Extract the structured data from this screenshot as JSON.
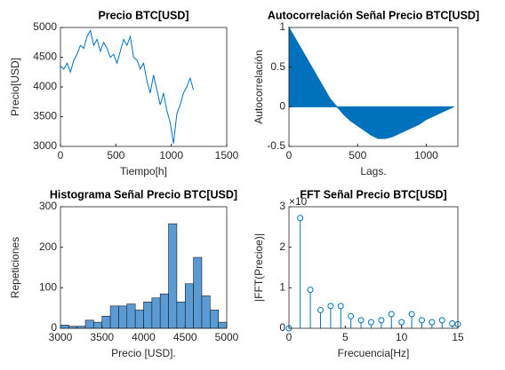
{
  "chart_data": [
    {
      "type": "line",
      "title": "Precio BTC[USD]",
      "xlabel": "Tiempo[h]",
      "ylabel": "Precio[USD]",
      "color": "#0072bd",
      "x": [
        0,
        30,
        60,
        90,
        120,
        150,
        180,
        210,
        240,
        270,
        300,
        330,
        360,
        390,
        420,
        450,
        480,
        510,
        540,
        570,
        600,
        630,
        660,
        690,
        720,
        750,
        780,
        810,
        840,
        870,
        900,
        930,
        960,
        990,
        1020,
        1050,
        1080,
        1110,
        1140,
        1170,
        1200
      ],
      "values": [
        4350,
        4300,
        4400,
        4250,
        4450,
        4550,
        4700,
        4650,
        4850,
        4950,
        4700,
        4800,
        4600,
        4750,
        4650,
        4500,
        4550,
        4400,
        4600,
        4800,
        4700,
        4850,
        4500,
        4450,
        4300,
        4400,
        4100,
        3900,
        4200,
        3950,
        3700,
        3900,
        3600,
        3400,
        3050,
        3550,
        3700,
        3900,
        4000,
        4150,
        3950
      ],
      "xlim": [
        0,
        1500
      ],
      "xticks": [
        0,
        500,
        1000,
        1500
      ],
      "ylim": [
        3000,
        5000
      ],
      "yticks": [
        3000,
        3500,
        4000,
        4500,
        5000
      ]
    },
    {
      "type": "area",
      "title": "Autocorrelación Señal Precio BTC[USD]",
      "xlabel": "Lags.",
      "ylabel": "Autocorrelación",
      "color": "#0072bd",
      "x": [
        0,
        50,
        100,
        150,
        200,
        250,
        300,
        350,
        400,
        450,
        500,
        550,
        600,
        650,
        700,
        750,
        800,
        850,
        900,
        950,
        1000,
        1050,
        1100,
        1150,
        1200
      ],
      "values": [
        1,
        0.85,
        0.7,
        0.55,
        0.4,
        0.25,
        0.1,
        0,
        -0.1,
        -0.18,
        -0.24,
        -0.3,
        -0.36,
        -0.4,
        -0.4,
        -0.38,
        -0.34,
        -0.3,
        -0.26,
        -0.22,
        -0.16,
        -0.12,
        -0.08,
        -0.04,
        0
      ],
      "xlim": [
        0,
        1230
      ],
      "xticks": [
        0,
        500,
        1000
      ],
      "ylim": [
        -0.5,
        1
      ],
      "yticks": [
        -0.5,
        0,
        0.5,
        1
      ]
    },
    {
      "type": "histogram",
      "title": "Histograma Señal Precio BTC[USD]",
      "xlabel": "Precio [USD].",
      "ylabel": "Repeticiones",
      "color": "#5b9bd5",
      "bins": [
        3000,
        3100,
        3200,
        3300,
        3400,
        3500,
        3600,
        3700,
        3800,
        3900,
        4000,
        4100,
        4200,
        4300,
        4400,
        4500,
        4600,
        4700,
        4800,
        4900,
        5000
      ],
      "values": [
        8,
        5,
        5,
        20,
        15,
        30,
        55,
        55,
        60,
        45,
        65,
        75,
        85,
        258,
        65,
        110,
        175,
        80,
        45,
        15
      ],
      "xlim": [
        3000,
        5000
      ],
      "xticks": [
        3000,
        3500,
        4000,
        4500,
        5000
      ],
      "ylim": [
        0,
        300
      ],
      "yticks": [
        0,
        100,
        200,
        300
      ]
    },
    {
      "type": "stem",
      "title": "FFT Señal Precio BTC[USD]",
      "xlabel": "Frecuencia[Hz]",
      "ylabel": "|FFT(Precioe)|",
      "annotation": "×10",
      "color": "#0072bd",
      "x": [
        0,
        1,
        1.9,
        2.8,
        3.7,
        4.6,
        5.5,
        6.4,
        7.3,
        8.2,
        9.1,
        10,
        10.9,
        11.8,
        12.7,
        13.6,
        14.5,
        15
      ],
      "values": [
        0,
        2.72,
        0.95,
        0.45,
        0.55,
        0.55,
        0.3,
        0.2,
        0.15,
        0.2,
        0.35,
        0.15,
        0.35,
        0.2,
        0.15,
        0.2,
        0.12,
        0.1
      ],
      "xlim": [
        0,
        15
      ],
      "xticks": [
        0,
        5,
        10,
        15
      ],
      "ylim": [
        0,
        3
      ],
      "yticks": [
        0,
        1,
        2,
        3
      ]
    }
  ]
}
